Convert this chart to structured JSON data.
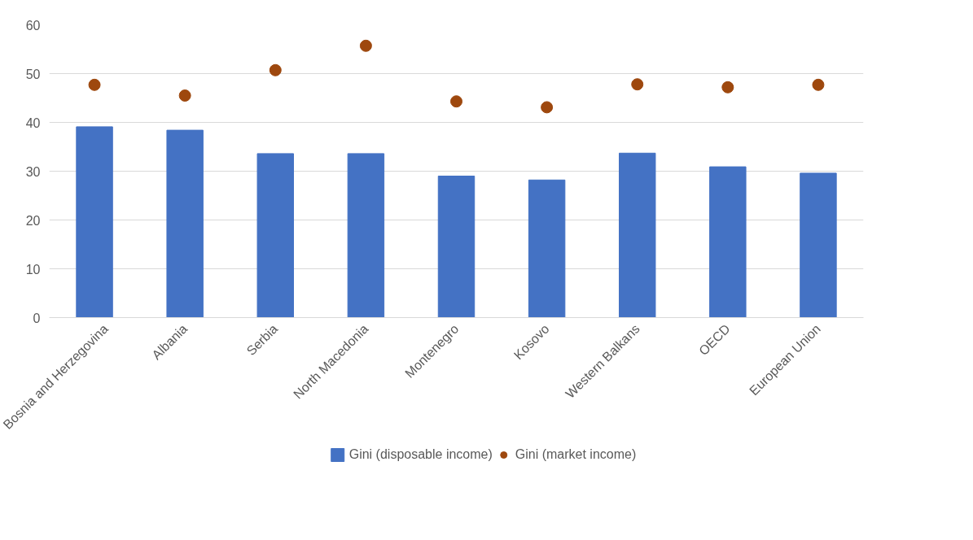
{
  "chart_data": {
    "type": "bar",
    "categories": [
      "Bosnia and Herzegovina",
      "Albania",
      "Serbia",
      "North Macedonia",
      "Montenegro",
      "Kosovo",
      "Western Balkans",
      "OECD",
      "European Union"
    ],
    "series": [
      {
        "name": "Gini (disposable income)",
        "color": "#4472c4",
        "values": [
          39.1,
          38.4,
          33.6,
          33.6,
          29.0,
          28.2,
          33.7,
          30.9,
          29.6
        ]
      },
      {
        "name": "Gini (market income)",
        "type": "scatter",
        "color": "#9e480e",
        "marker": "circle",
        "values": [
          47.7,
          45.5,
          50.7,
          55.7,
          44.3,
          43.1,
          47.8,
          47.2,
          47.7
        ]
      }
    ],
    "ylim": [
      0,
      60
    ],
    "yticks": [
      0,
      10,
      20,
      30,
      40,
      50,
      60
    ],
    "grid": "y",
    "legend": "bottom"
  }
}
